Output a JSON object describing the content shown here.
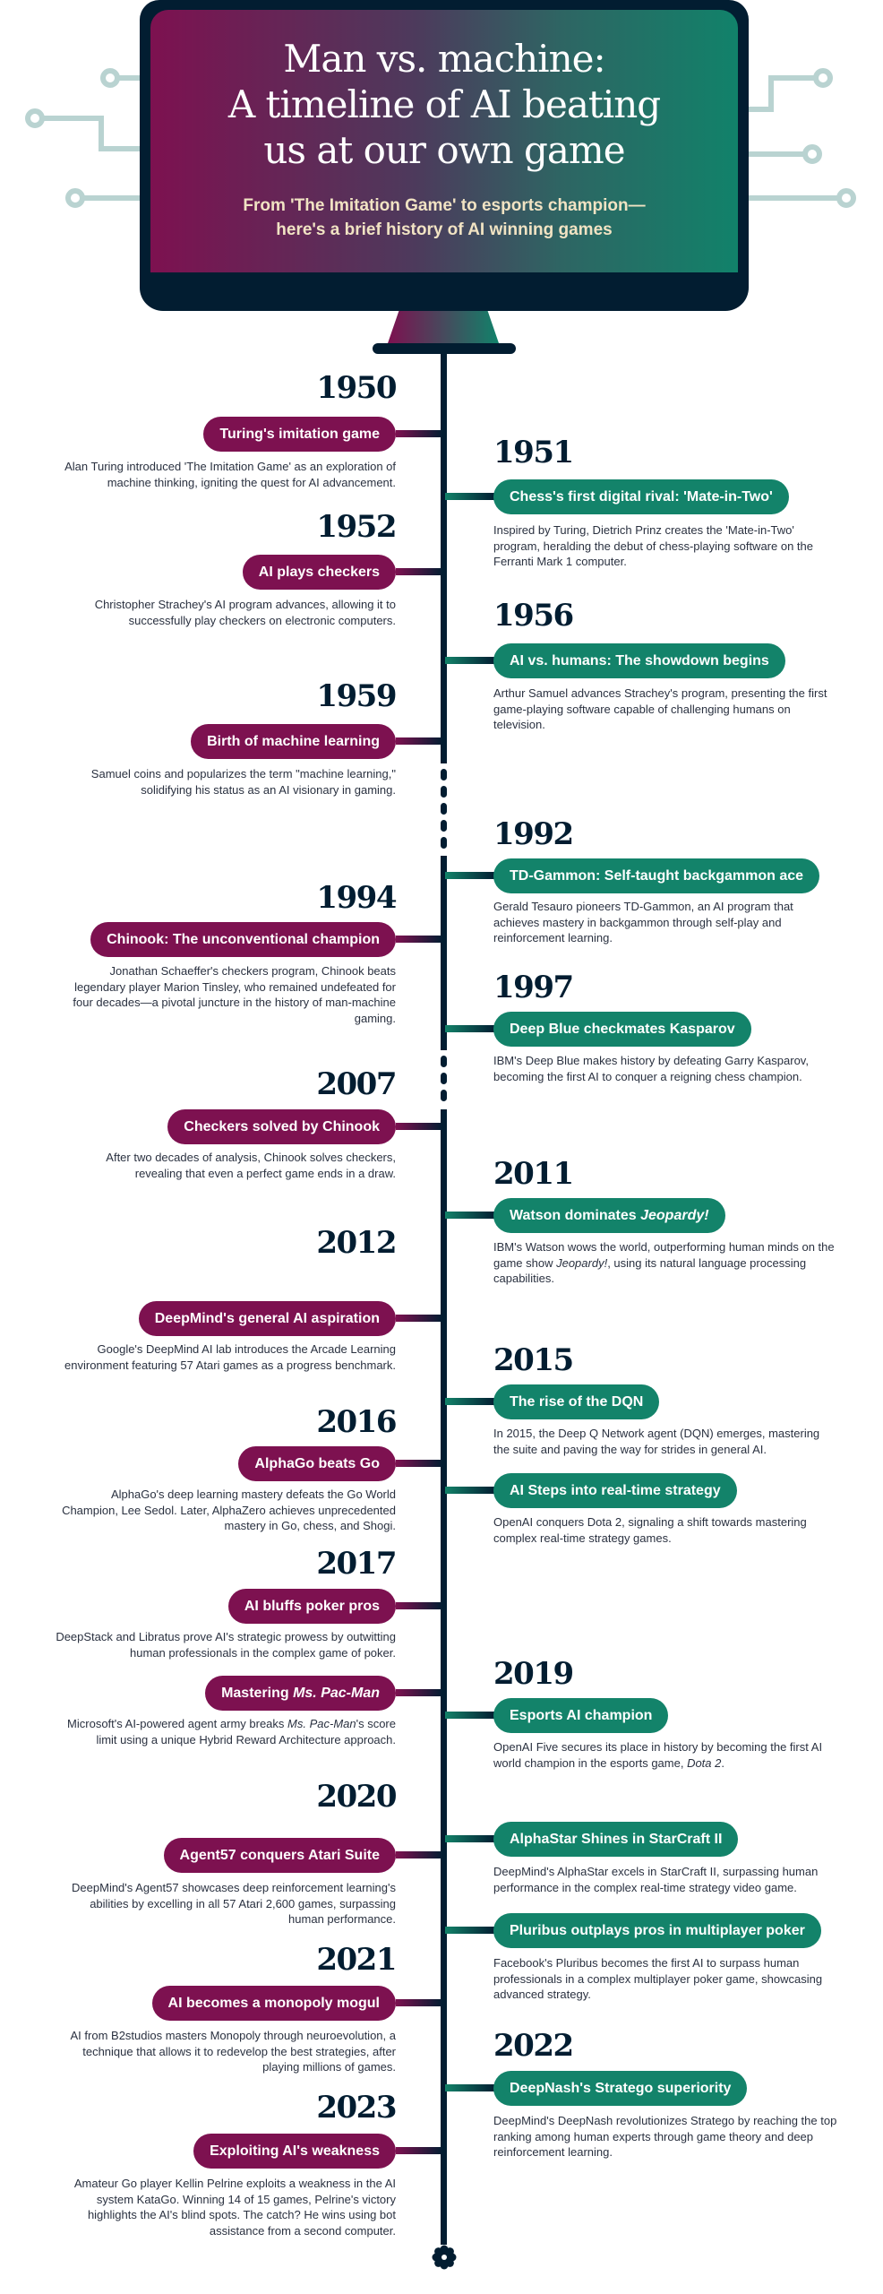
{
  "header": {
    "title_lines": [
      "Man vs. machine:",
      "A timeline of AI beating",
      "us at our own game"
    ],
    "subtitle_lines": [
      "From 'The Imitation Game' to esports champion—",
      "here's a brief history of AI winning games"
    ]
  },
  "colors": {
    "left_accent": "#7d1150",
    "right_accent": "#13836a",
    "navy": "#021d31",
    "circuit": "#b9d3d1",
    "subtitle": "#f1e3c3"
  },
  "events": [
    {
      "side": "left",
      "year": "1950",
      "title": [
        {
          "t": "Turing's imitation game"
        }
      ],
      "desc": [
        {
          "t": "Alan Turing introduced 'The Imitation Game' as an exploration of machine thinking, igniting the quest for AI advancement."
        }
      ]
    },
    {
      "side": "right",
      "year": "1951",
      "title": [
        {
          "t": "Chess's first digital rival: 'Mate-in-Two'"
        }
      ],
      "desc": [
        {
          "t": "Inspired by Turing, Dietrich Prinz creates the 'Mate-in-Two' program, heralding the debut of chess-playing software on the Ferranti Mark 1 computer."
        }
      ]
    },
    {
      "side": "left",
      "year": "1952",
      "title": [
        {
          "t": "AI plays checkers"
        }
      ],
      "desc": [
        {
          "t": "Christopher Strachey's AI program advances, allowing it to successfully play checkers on electronic computers."
        }
      ]
    },
    {
      "side": "right",
      "year": "1956",
      "title": [
        {
          "t": "AI vs. humans: The showdown begins"
        }
      ],
      "desc": [
        {
          "t": "Arthur Samuel advances Strachey's program, presenting the first game-playing software capable of challenging humans on television."
        }
      ]
    },
    {
      "side": "left",
      "year": "1959",
      "title": [
        {
          "t": "Birth of machine learning"
        }
      ],
      "desc": [
        {
          "t": "Samuel coins and popularizes the term \"machine learning,\" solidifying his status as an AI visionary in gaming."
        }
      ]
    },
    {
      "side": "right",
      "year": "1992",
      "title": [
        {
          "t": "TD-Gammon: Self-taught backgammon ace"
        }
      ],
      "desc": [
        {
          "t": "Gerald Tesauro pioneers TD-Gammon, an AI program that achieves mastery in backgammon through self-play and reinforcement learning."
        }
      ]
    },
    {
      "side": "left",
      "year": "1994",
      "title": [
        {
          "t": "Chinook: The unconventional champion"
        }
      ],
      "desc": [
        {
          "t": "Jonathan Schaeffer's checkers program, Chinook beats legendary player Marion Tinsley, who remained undefeated for four decades—a pivotal juncture in the history of man-machine gaming."
        }
      ]
    },
    {
      "side": "right",
      "year": "1997",
      "title": [
        {
          "t": "Deep Blue checkmates Kasparov"
        }
      ],
      "desc": [
        {
          "t": "IBM's Deep Blue makes history by defeating Garry Kasparov, becoming the first AI to conquer a reigning chess champion."
        }
      ]
    },
    {
      "side": "left",
      "year": "2007",
      "title": [
        {
          "t": "Checkers solved by Chinook"
        }
      ],
      "desc": [
        {
          "t": "After two decades of analysis, Chinook solves checkers, revealing that even a perfect game ends in a draw."
        }
      ]
    },
    {
      "side": "right",
      "year": "2011",
      "title": [
        {
          "t": "Watson dominates "
        },
        {
          "t": "Jeopardy!",
          "i": true
        }
      ],
      "desc": [
        {
          "t": "IBM's Watson wows the world, outperforming human minds on the game show "
        },
        {
          "t": "Jeopardy!",
          "i": true
        },
        {
          "t": ", using its natural language processing capabilities."
        }
      ]
    },
    {
      "side": "left",
      "year": "2012",
      "title": [
        {
          "t": "DeepMind's general AI aspiration"
        }
      ],
      "desc": [
        {
          "t": "Google's DeepMind AI lab introduces the Arcade Learning environment featuring 57 Atari games as a progress benchmark."
        }
      ]
    },
    {
      "side": "right",
      "year": "2015",
      "title": [
        {
          "t": "The rise of the DQN"
        }
      ],
      "desc": [
        {
          "t": "In 2015, the Deep Q Network agent (DQN) emerges, mastering the suite and paving the way for strides in general AI."
        }
      ]
    },
    {
      "side": "left",
      "year": "2016",
      "title": [
        {
          "t": "AlphaGo beats Go"
        }
      ],
      "desc": [
        {
          "t": "AlphaGo's deep learning mastery defeats the Go World Champion, Lee Sedol. Later, AlphaZero achieves unprecedented mastery in Go, chess, and Shogi."
        }
      ]
    },
    {
      "side": "right",
      "year": "",
      "title": [
        {
          "t": "AI Steps into real-time strategy"
        }
      ],
      "desc": [
        {
          "t": "OpenAI conquers Dota 2, signaling a shift towards mastering complex real-time strategy games."
        }
      ]
    },
    {
      "side": "left",
      "year": "2017",
      "title": [
        {
          "t": "AI bluffs poker pros"
        }
      ],
      "desc": [
        {
          "t": "DeepStack and Libratus prove AI's strategic prowess by outwitting human professionals in the complex game of poker."
        }
      ]
    },
    {
      "side": "left",
      "year": "",
      "title": [
        {
          "t": "Mastering "
        },
        {
          "t": "Ms. Pac-Man",
          "i": true
        }
      ],
      "desc": [
        {
          "t": "Microsoft's AI-powered agent army breaks "
        },
        {
          "t": "Ms. Pac-Man",
          "i": true
        },
        {
          "t": "'s score limit using a unique Hybrid Reward Architecture approach."
        }
      ]
    },
    {
      "side": "right",
      "year": "2019",
      "title": [
        {
          "t": "Esports AI champion"
        }
      ],
      "desc": [
        {
          "t": "OpenAI Five secures its place in history by becoming the first AI world champion in the esports game, "
        },
        {
          "t": "Dota 2",
          "i": true
        },
        {
          "t": "."
        }
      ]
    },
    {
      "side": "left",
      "year": "2020",
      "title": [
        {
          "t": "Agent57 conquers Atari Suite"
        }
      ],
      "desc": [
        {
          "t": "DeepMind's Agent57 showcases deep reinforcement learning's abilities by excelling in all 57 Atari 2,600 games, surpassing human performance."
        }
      ]
    },
    {
      "side": "right",
      "year": "",
      "title": [
        {
          "t": "AlphaStar Shines in StarCraft II"
        }
      ],
      "desc": [
        {
          "t": "DeepMind's AlphaStar excels in StarCraft II, surpassing human performance in the complex real-time strategy video game."
        }
      ]
    },
    {
      "side": "right",
      "year": "",
      "title": [
        {
          "t": "Pluribus outplays pros in multiplayer poker"
        }
      ],
      "desc": [
        {
          "t": "Facebook's Pluribus becomes the first AI to surpass human professionals in a complex multiplayer poker game, showcasing advanced strategy."
        }
      ]
    },
    {
      "side": "left",
      "year": "2021",
      "title": [
        {
          "t": "AI becomes a monopoly mogul"
        }
      ],
      "desc": [
        {
          "t": "AI from B2studios masters Monopoly through neuroevolution, a technique that allows it to redevelop the best strategies, after playing millions of games."
        }
      ]
    },
    {
      "side": "right",
      "year": "2022",
      "title": [
        {
          "t": "DeepNash's Stratego superiority"
        }
      ],
      "desc": [
        {
          "t": "DeepMind's DeepNash revolutionizes Stratego by reaching the top ranking among human experts through game theory and deep reinforcement learning."
        }
      ]
    },
    {
      "side": "left",
      "year": "2023",
      "title": [
        {
          "t": "Exploiting AI's weakness"
        }
      ],
      "desc": [
        {
          "t": "Amateur Go player Kellin Pelrine exploits a weakness in the AI system KataGo. Winning 14 of 15 games, Pelrine's victory highlights the AI's blind spots. The catch? He wins using bot assistance from a second computer."
        }
      ]
    }
  ]
}
